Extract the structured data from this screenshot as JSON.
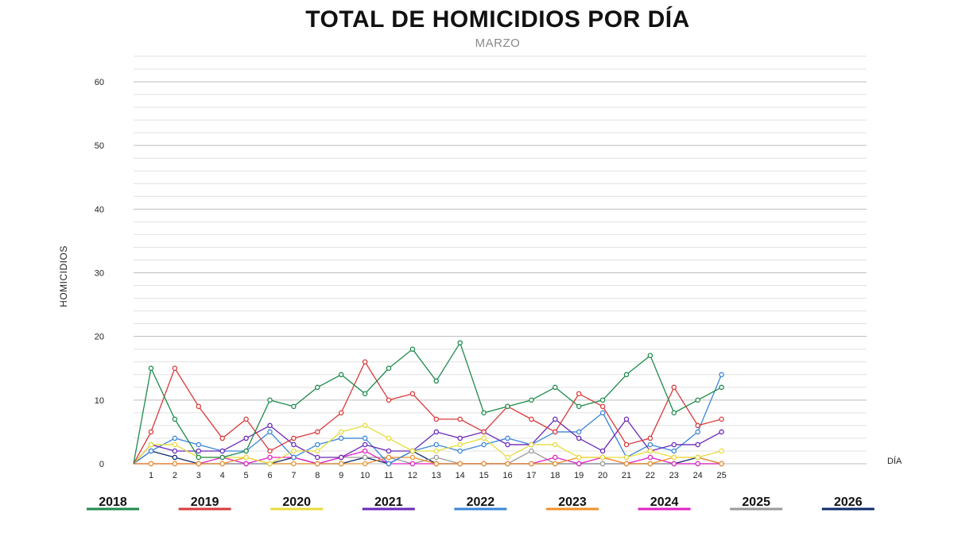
{
  "chart_data": {
    "type": "line",
    "title": "TOTAL DE HOMICIDIOS POR DÍA",
    "subtitle": "MARZO",
    "ylabel": "HOMICIDIOS",
    "xlabel": "DÍA",
    "ylim": [
      0,
      60
    ],
    "y_ticks": [
      0,
      10,
      20,
      30,
      40,
      50,
      60
    ],
    "grid": true,
    "legend_position": "bottom",
    "x": [
      1,
      2,
      3,
      4,
      5,
      6,
      7,
      8,
      9,
      10,
      11,
      12,
      13,
      14,
      15,
      16,
      17,
      18,
      19,
      20,
      21,
      22,
      23,
      24,
      25
    ],
    "series": [
      {
        "name": "2018",
        "color": "#1e8a4c",
        "values": [
          15,
          7,
          1,
          1,
          2,
          10,
          9,
          12,
          14,
          11,
          15,
          18,
          13,
          19,
          8,
          9,
          10,
          12,
          9,
          10,
          14,
          17,
          8,
          10,
          12
        ]
      },
      {
        "name": "2019",
        "color": "#d93a3a",
        "values": [
          5,
          15,
          9,
          4,
          7,
          2,
          4,
          5,
          8,
          16,
          10,
          11,
          7,
          7,
          5,
          9,
          7,
          5,
          11,
          9,
          3,
          4,
          12,
          6,
          7
        ]
      },
      {
        "name": "2020",
        "color": "#e8dc3c",
        "values": [
          3,
          3,
          1,
          1,
          1,
          0,
          2,
          2,
          5,
          6,
          4,
          2,
          2,
          3,
          4,
          1,
          3,
          3,
          1,
          1,
          1,
          2,
          1,
          1,
          2
        ]
      },
      {
        "name": "2021",
        "color": "#6a28b8",
        "values": [
          3,
          2,
          2,
          2,
          4,
          6,
          3,
          1,
          1,
          3,
          2,
          2,
          5,
          4,
          5,
          3,
          3,
          7,
          4,
          2,
          7,
          2,
          3,
          3,
          5
        ]
      },
      {
        "name": "2022",
        "color": "#3a86d8",
        "values": [
          2,
          4,
          3,
          2,
          2,
          5,
          1,
          3,
          4,
          4,
          0,
          2,
          3,
          2,
          3,
          4,
          3,
          5,
          5,
          8,
          1,
          3,
          2,
          5,
          14
        ]
      },
      {
        "name": "2023",
        "color": "#f0922a",
        "values": [
          0,
          0,
          0,
          0,
          1,
          0,
          0,
          0,
          0,
          0,
          1,
          1,
          0,
          0,
          0,
          0,
          0,
          0,
          1,
          1,
          0,
          0,
          1,
          1,
          0
        ]
      },
      {
        "name": "2024",
        "color": "#e020c0",
        "values": [
          0,
          0,
          0,
          1,
          0,
          1,
          1,
          0,
          1,
          2,
          0,
          0,
          0,
          0,
          0,
          0,
          0,
          1,
          0,
          1,
          0,
          1,
          0,
          0,
          0
        ]
      },
      {
        "name": "2025",
        "color": "#9a9a9a",
        "values": [
          0,
          0,
          0,
          0,
          0,
          0,
          0,
          0,
          1,
          1,
          1,
          0,
          1,
          0,
          0,
          0,
          2,
          0,
          0,
          0,
          0,
          0,
          0,
          0,
          0
        ]
      },
      {
        "name": "2026",
        "color": "#0f2a6b",
        "values": [
          2,
          1,
          0,
          0,
          0,
          0,
          1,
          0,
          0,
          1,
          0,
          2,
          0,
          0,
          0,
          0,
          0,
          0,
          0,
          0,
          0,
          0,
          0,
          1,
          0
        ]
      }
    ]
  }
}
